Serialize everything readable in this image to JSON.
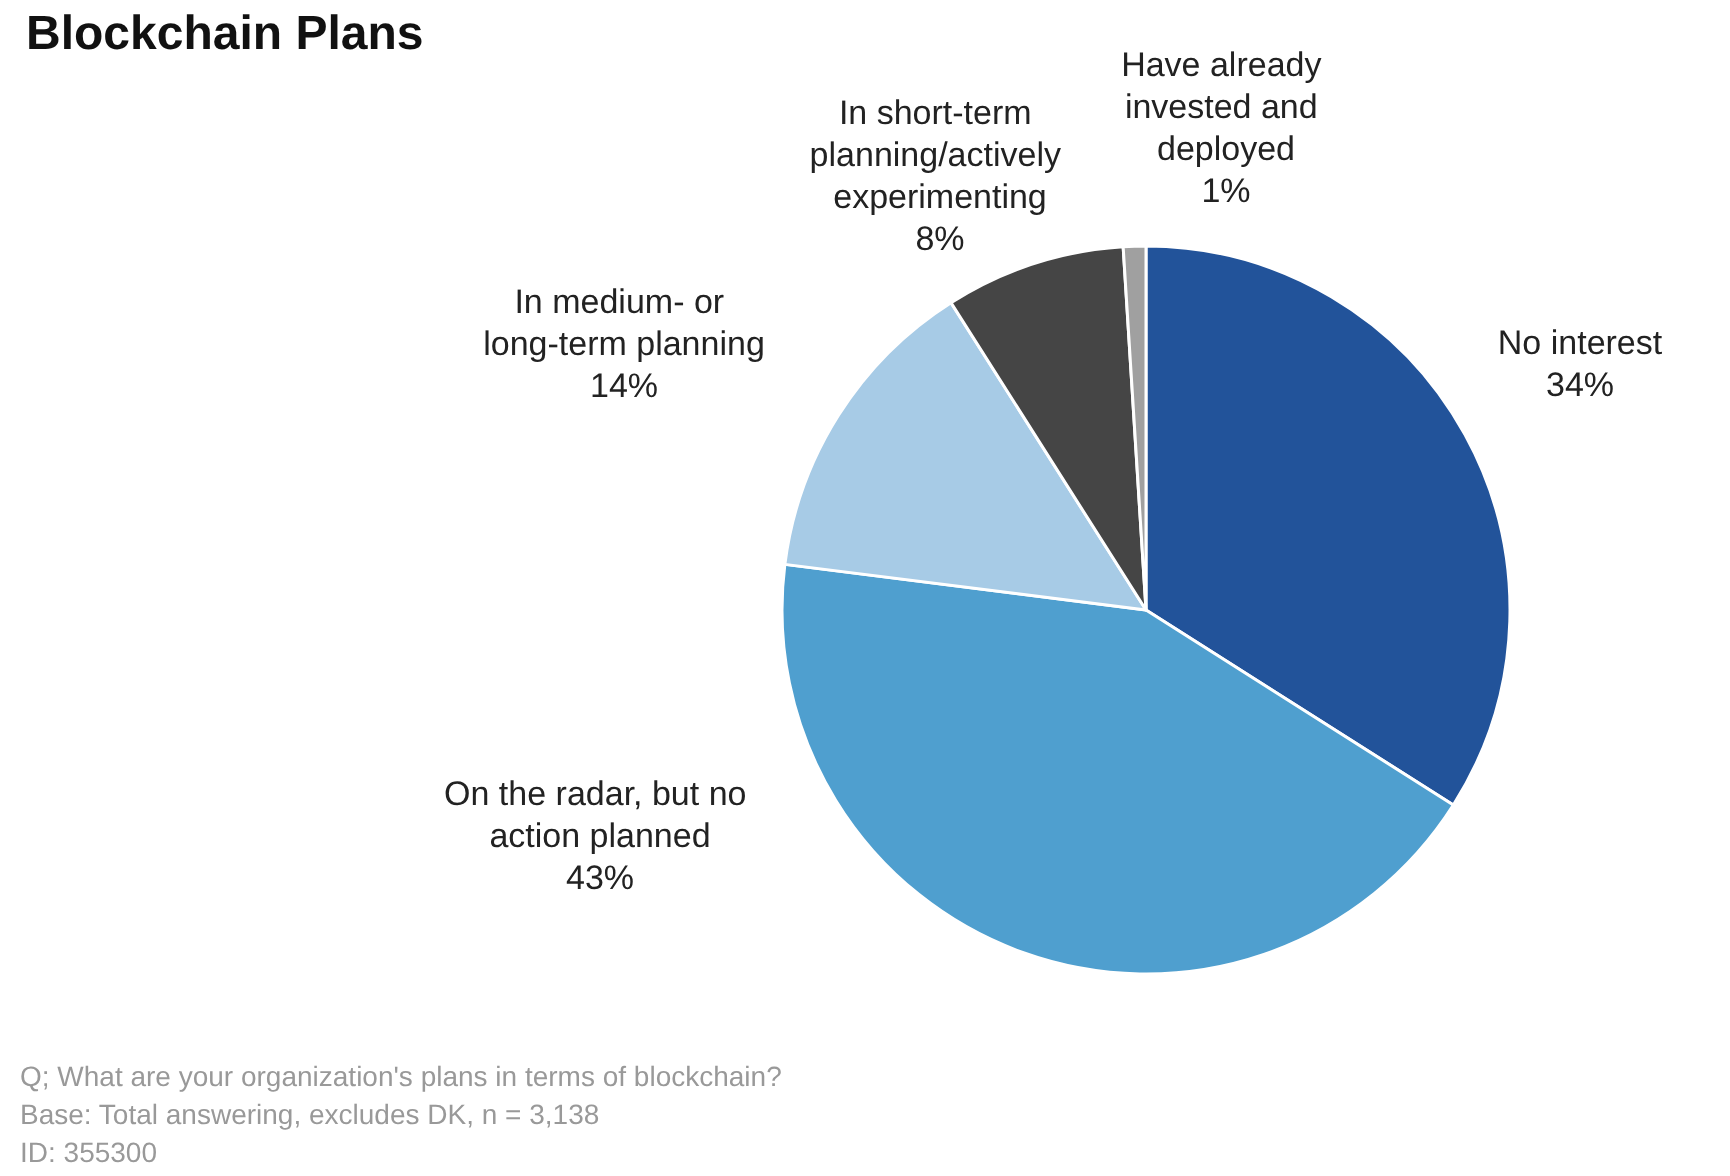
{
  "chart_data": {
    "type": "pie",
    "title": "Blockchain Plans",
    "categories": [
      "No interest",
      "On the radar, but no action planned",
      "In medium- or long-term planning",
      "In short-term planning/actively experimenting",
      "Have already invested and deployed"
    ],
    "values": [
      34,
      43,
      14,
      8,
      1
    ],
    "value_labels": [
      "34%",
      "43%",
      "14%",
      "8%",
      "1%"
    ],
    "colors": [
      "#22539a",
      "#4f9fcf",
      "#a7cbe6",
      "#454545",
      "#a0a0a0"
    ],
    "annotations": [
      "Q; What are your organization's plans in terms of blockchain?",
      "Base: Total answering, excludes DK, n = 3,138",
      "ID: 355300"
    ]
  }
}
